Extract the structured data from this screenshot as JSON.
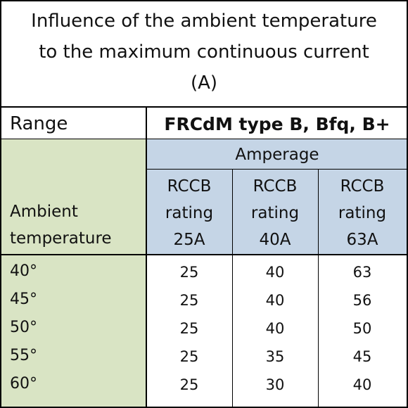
{
  "header": {
    "title_lines": [
      "Influence of the ambient temperature",
      "to the maximum continuous current",
      "(A)"
    ]
  },
  "table": {
    "range_label": "Range",
    "product": "FRCdM type B, Bfq, B+",
    "group_header": "Amperage",
    "row_header": "Ambient temperature",
    "columns": [
      "RCCB rating 25A",
      "RCCB rating 40A",
      "RCCB rating 63A"
    ],
    "rows": [
      [
        "40°",
        25,
        40,
        63
      ],
      [
        "45°",
        25,
        40,
        56
      ],
      [
        "50°",
        25,
        40,
        50
      ],
      [
        "55°",
        25,
        35,
        45
      ],
      [
        "60°",
        25,
        30,
        40
      ]
    ]
  }
}
